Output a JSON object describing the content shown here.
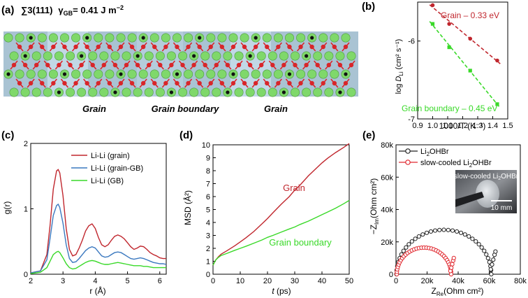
{
  "colors": {
    "red": "#c0262d",
    "blue": "#3a78bf",
    "green": "#39d928",
    "black": "#222222",
    "slab": "#a9c3d3",
    "li": "#7fd86a",
    "o": "#d8262a"
  },
  "panel_a": {
    "label": "(a)",
    "gb_title": "∑3(111)",
    "gamma_sym": "γ",
    "gamma_sub": "GB",
    "gamma_val": "= 0.41 J m",
    "gamma_exp": "−2",
    "label_grain_1": "Grain",
    "label_boundary": "Grain boundary",
    "label_grain_2": "Grain"
  },
  "chart_data": [
    {
      "id": "b",
      "type": "scatter",
      "label": "(b)",
      "xlabel": "1000/T (K⁻¹)",
      "ylabel_prefix": "log ",
      "ylabel_D": "D",
      "ylabel_sub": "Li",
      "ylabel_suffix": " (cm² s⁻¹)",
      "xlim": [
        0.9,
        1.5
      ],
      "ylim": [
        -7,
        -5.5
      ],
      "xticks": [
        "0.9",
        "1.0",
        "1.1",
        "1.2",
        "1.3",
        "1.4",
        "1.5"
      ],
      "yticks": [
        "-7",
        "-6"
      ],
      "series": [
        {
          "name": "Grain – 0.33 eV",
          "x": [
            1.0,
            1.11,
            1.25,
            1.43
          ],
          "y": [
            -5.54,
            -5.78,
            -5.97,
            -6.25
          ]
        },
        {
          "name": "Grain boundary – 0.45 eV",
          "x": [
            1.0,
            1.11,
            1.25,
            1.43
          ],
          "y": [
            -5.78,
            -6.08,
            -6.38,
            -6.81
          ]
        }
      ]
    },
    {
      "id": "c",
      "type": "line",
      "label": "(c)",
      "xlabel": "r (Å)",
      "ylabel": "g(r)",
      "xlim": [
        2,
        6.2
      ],
      "ylim": [
        0,
        2
      ],
      "xticks": [
        "2",
        "3",
        "4",
        "5",
        "6"
      ],
      "yticks": [
        "0",
        "1",
        "2"
      ],
      "series": [
        {
          "name": "Li-Li (grain)",
          "x": [
            2.0,
            2.3,
            2.5,
            2.6,
            2.7,
            2.8,
            2.85,
            2.9,
            3.0,
            3.1,
            3.2,
            3.3,
            3.4,
            3.5,
            3.6,
            3.7,
            3.8,
            3.9,
            4.0,
            4.1,
            4.2,
            4.3,
            4.4,
            4.5,
            4.6,
            4.7,
            4.8,
            4.9,
            5.0,
            5.1,
            5.2,
            5.3,
            5.4,
            5.5,
            5.6,
            5.7,
            5.8,
            5.9,
            6.0,
            6.1,
            6.2
          ],
          "y": [
            0.02,
            0.05,
            0.3,
            0.75,
            1.3,
            1.58,
            1.6,
            1.55,
            1.2,
            0.7,
            0.38,
            0.28,
            0.3,
            0.4,
            0.52,
            0.66,
            0.74,
            0.77,
            0.7,
            0.56,
            0.45,
            0.42,
            0.45,
            0.52,
            0.58,
            0.6,
            0.58,
            0.54,
            0.48,
            0.42,
            0.38,
            0.4,
            0.43,
            0.42,
            0.38,
            0.33,
            0.3,
            0.28,
            0.25,
            0.24,
            0.24
          ]
        },
        {
          "name": "Li-Li (grain-GB)",
          "x": [
            2.0,
            2.3,
            2.5,
            2.6,
            2.7,
            2.8,
            2.85,
            2.9,
            3.0,
            3.1,
            3.2,
            3.3,
            3.4,
            3.5,
            3.6,
            3.7,
            3.8,
            3.9,
            4.0,
            4.1,
            4.2,
            4.3,
            4.4,
            4.5,
            4.6,
            4.7,
            4.8,
            4.9,
            5.0,
            5.1,
            5.2,
            5.3,
            5.4,
            5.5,
            5.6,
            5.7,
            5.8,
            5.9,
            6.0,
            6.1,
            6.2
          ],
          "y": [
            0.02,
            0.05,
            0.22,
            0.55,
            0.9,
            1.05,
            1.07,
            1.02,
            0.78,
            0.45,
            0.24,
            0.18,
            0.19,
            0.24,
            0.3,
            0.36,
            0.4,
            0.42,
            0.4,
            0.34,
            0.28,
            0.26,
            0.27,
            0.3,
            0.33,
            0.34,
            0.33,
            0.3,
            0.27,
            0.24,
            0.23,
            0.24,
            0.25,
            0.24,
            0.22,
            0.2,
            0.18,
            0.17,
            0.16,
            0.16,
            0.15
          ]
        },
        {
          "name": "Li-Li (GB)",
          "x": [
            2.0,
            2.3,
            2.5,
            2.6,
            2.7,
            2.8,
            2.85,
            2.9,
            3.0,
            3.1,
            3.2,
            3.3,
            3.4,
            3.5,
            3.6,
            3.7,
            3.8,
            3.9,
            4.0,
            4.1,
            4.2,
            4.3,
            4.4,
            4.5,
            4.6,
            4.7,
            4.8,
            4.9,
            5.0,
            5.1,
            5.2,
            5.3,
            5.4,
            5.5,
            5.6,
            5.7,
            5.8,
            5.9,
            6.0,
            6.1,
            6.2
          ],
          "y": [
            0.01,
            0.03,
            0.1,
            0.2,
            0.3,
            0.34,
            0.35,
            0.33,
            0.25,
            0.16,
            0.1,
            0.08,
            0.09,
            0.12,
            0.15,
            0.18,
            0.2,
            0.21,
            0.2,
            0.18,
            0.16,
            0.15,
            0.15,
            0.16,
            0.17,
            0.18,
            0.17,
            0.16,
            0.15,
            0.14,
            0.13,
            0.13,
            0.13,
            0.12,
            0.12,
            0.11,
            0.1,
            0.1,
            0.1,
            0.1,
            0.1
          ]
        }
      ]
    },
    {
      "id": "d",
      "type": "line",
      "label": "(d)",
      "xlabel_t": "t",
      "xlabel_unit": " (ps)",
      "ylabel": "MSD (Å²)",
      "xlim": [
        0,
        50
      ],
      "ylim": [
        0,
        10
      ],
      "xticks": [
        "0",
        "10",
        "20",
        "30",
        "40",
        "50"
      ],
      "yticks": [
        "0",
        "1",
        "2",
        "3",
        "4",
        "5",
        "6",
        "7",
        "8",
        "9",
        "10"
      ],
      "series": [
        {
          "name": "Grain",
          "x": [
            0,
            1,
            2,
            3,
            5,
            8,
            10,
            12,
            15,
            18,
            20,
            22,
            25,
            28,
            30,
            32,
            35,
            38,
            40,
            42,
            45,
            48,
            50
          ],
          "y": [
            0.7,
            1.1,
            1.35,
            1.55,
            1.8,
            2.2,
            2.5,
            2.8,
            3.3,
            3.9,
            4.3,
            4.75,
            5.4,
            6.0,
            6.5,
            6.9,
            7.6,
            8.2,
            8.6,
            8.95,
            9.4,
            9.8,
            10.1
          ]
        },
        {
          "name": "Grain boundary",
          "x": [
            0,
            1,
            2,
            3,
            5,
            8,
            10,
            12,
            15,
            18,
            20,
            22,
            25,
            28,
            30,
            32,
            35,
            38,
            40,
            42,
            45,
            48,
            50
          ],
          "y": [
            0.7,
            1.1,
            1.3,
            1.45,
            1.6,
            1.85,
            2.0,
            2.15,
            2.4,
            2.65,
            2.85,
            3.0,
            3.25,
            3.5,
            3.65,
            3.85,
            4.1,
            4.4,
            4.6,
            4.8,
            5.1,
            5.45,
            5.7
          ]
        }
      ]
    },
    {
      "id": "e",
      "type": "scatter",
      "label": "(e)",
      "xlabel_main": "Z",
      "xlabel_sub": "Re",
      "xlabel_unit": "(Ohm cm²)",
      "ylabel_main": "−Z",
      "ylabel_sub": "Im",
      "ylabel_unit": "(Ohm cm²)",
      "xlim": [
        0,
        80000
      ],
      "ylim": [
        0,
        80000
      ],
      "xticks": [
        "0",
        "20k",
        "40k",
        "60k",
        "80k"
      ],
      "yticks": [
        "0",
        "20k",
        "40k",
        "60k",
        "80k"
      ],
      "series": [
        {
          "name_main": "Li",
          "name_sub": "2",
          "name_rest": "OHBr",
          "center_x": 30800,
          "radius": 30500,
          "tail_x": [
            61000,
            61800,
            62600,
            63400,
            64000
          ],
          "tail_y": [
            3000,
            6000,
            9000,
            12000,
            14000
          ]
        },
        {
          "name_main": "slow-cooled Li",
          "name_sub": "2",
          "name_rest": "OHBr",
          "center_x": 18000,
          "radius": 17500,
          "tail_x": [
            35000,
            35600,
            36200,
            36800,
            37200
          ],
          "tail_y": [
            2000,
            4000,
            6200,
            8400,
            10000
          ]
        }
      ],
      "inset_label_main": "slow-cooled Li",
      "inset_label_sub": "2",
      "inset_label_rest": "OHBr",
      "scale_bar": "10 mm"
    }
  ]
}
